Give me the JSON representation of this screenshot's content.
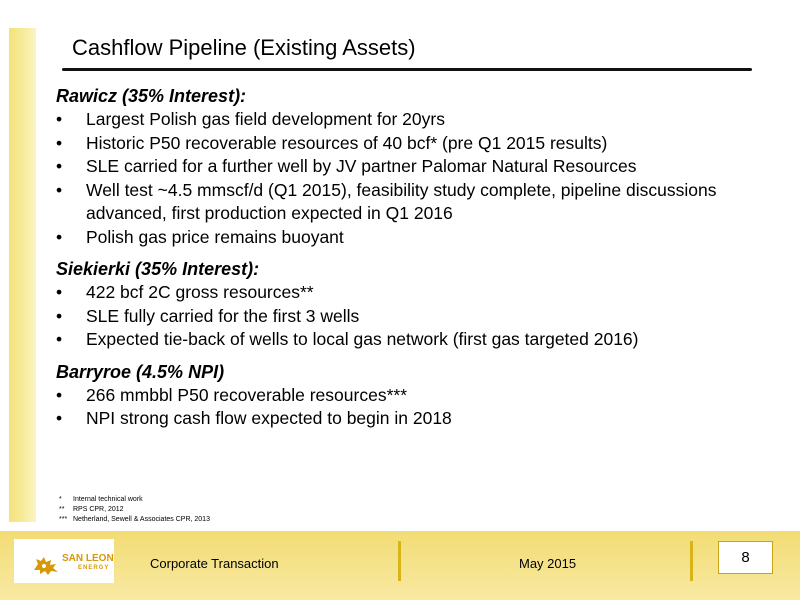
{
  "slide": {
    "title": "Cashflow Pipeline (Existing Assets)"
  },
  "sections": [
    {
      "heading": "Rawicz (35% Interest):",
      "bullets": [
        "Largest Polish gas field development for 20yrs",
        "Historic P50 recoverable resources of 40 bcf* (pre Q1 2015 results)",
        "SLE carried for a further well by JV partner Palomar Natural Resources",
        "Well test ~4.5 mmscf/d (Q1 2015), feasibility study complete, pipeline discussions advanced, first production expected in Q1 2016",
        "Polish gas price remains buoyant"
      ]
    },
    {
      "heading": "Siekierki (35% Interest):",
      "bullets": [
        "422 bcf 2C gross resources**",
        "SLE fully carried for the first 3 wells",
        "Expected tie-back of wells to local gas network (first gas targeted 2016)"
      ]
    },
    {
      "heading": "Barryroe (4.5% NPI)",
      "bullets": [
        "266 mmbbl P50 recoverable resources***",
        "NPI strong cash flow expected to begin in 2018"
      ]
    }
  ],
  "bullet_glyph": "•",
  "footnotes": [
    {
      "mark": "*",
      "text": "Internal technical work"
    },
    {
      "mark": "**",
      "text": "RPS CPR, 2012"
    },
    {
      "mark": "***",
      "text": "Netherland, Sewell & Associates CPR, 2013"
    }
  ],
  "footer": {
    "logo_name": "SAN LEON",
    "logo_sub": "ENERGY",
    "logo_icon": "lion-icon",
    "label": "Corporate Transaction",
    "date": "May 2015",
    "page_number": "8"
  },
  "colors": {
    "accent_gold": "#f3e27a",
    "footer_gold": "#f5e28a",
    "logo_orange": "#d79a06"
  }
}
